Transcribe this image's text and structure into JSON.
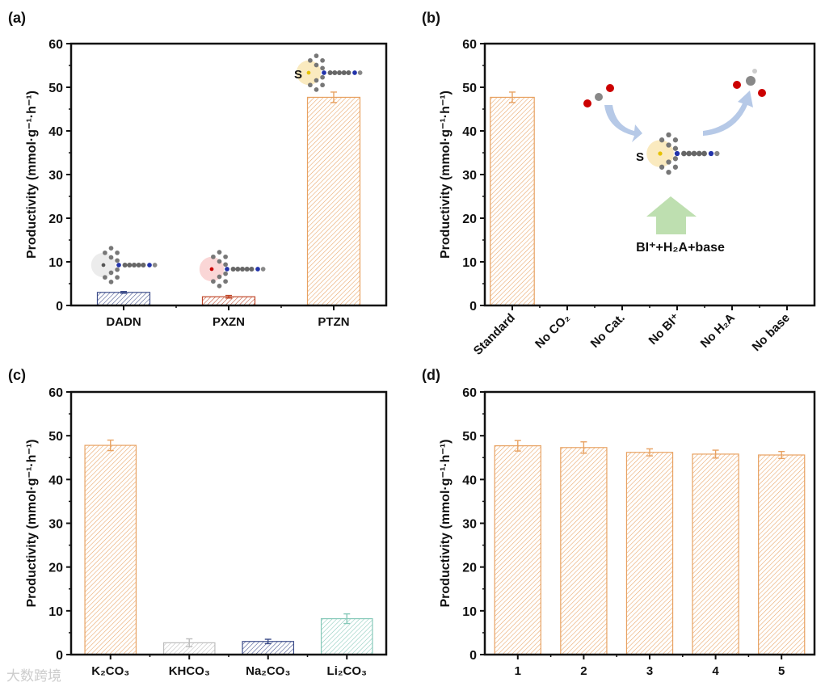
{
  "watermark": "大数跨境",
  "chart_data": [
    {
      "panel_label": "(a)",
      "type": "bar",
      "ylabel": "Productivity (mmol·g⁻¹·h⁻¹)",
      "ylim": [
        0,
        60
      ],
      "yticks": [
        "0",
        "10",
        "20",
        "30",
        "40",
        "50",
        "60"
      ],
      "categories": [
        "DADN",
        "PXZN",
        "PTZN"
      ],
      "values": [
        3.0,
        2.0,
        47.7
      ],
      "errors": [
        0.2,
        0.3,
        1.2
      ],
      "colors": [
        "#3d4d8a",
        "#c0482a",
        "#e8a262"
      ],
      "annotation_labels": [
        "S"
      ]
    },
    {
      "panel_label": "(b)",
      "type": "bar",
      "ylabel": "Productivity (mmol·g⁻¹·h⁻¹)",
      "ylim": [
        0,
        60
      ],
      "yticks": [
        "0",
        "10",
        "20",
        "30",
        "40",
        "50",
        "60"
      ],
      "categories": [
        "Standard",
        "No CO₂",
        "No Cat.",
        "No BI⁺",
        "No H₂A",
        "No base"
      ],
      "values": [
        47.7,
        0,
        0,
        0,
        0,
        0
      ],
      "errors": [
        1.2,
        0,
        0,
        0,
        0,
        0
      ],
      "colors": [
        "#e8a262",
        "#e8a262",
        "#e8a262",
        "#e8a262",
        "#e8a262",
        "#e8a262"
      ],
      "annotation_labels": [
        "S",
        "BI⁺+H₂A+base"
      ]
    },
    {
      "panel_label": "(c)",
      "type": "bar",
      "ylabel": "Productivity (mmol·g⁻¹·h⁻¹)",
      "ylim": [
        0,
        60
      ],
      "yticks": [
        "0",
        "10",
        "20",
        "30",
        "40",
        "50",
        "60"
      ],
      "categories": [
        "K₂CO₃",
        "KHCO₃",
        "Na₂CO₃",
        "Li₂CO₃"
      ],
      "values": [
        47.8,
        2.7,
        3.0,
        8.2
      ],
      "errors": [
        1.2,
        0.9,
        0.5,
        1.1
      ],
      "colors": [
        "#e8a262",
        "#bdbdbd",
        "#3d4d8a",
        "#86c9b9"
      ],
      "annotation_labels": []
    },
    {
      "panel_label": "(d)",
      "type": "bar",
      "ylabel": "Productivity (mmol·g⁻¹·h⁻¹)",
      "ylim": [
        0,
        60
      ],
      "yticks": [
        "0",
        "10",
        "20",
        "30",
        "40",
        "50",
        "60"
      ],
      "categories": [
        "1",
        "2",
        "3",
        "4",
        "5"
      ],
      "values": [
        47.7,
        47.3,
        46.2,
        45.8,
        45.6
      ],
      "errors": [
        1.2,
        1.3,
        0.8,
        0.9,
        0.8
      ],
      "colors": [
        "#e8a262",
        "#e8a262",
        "#e8a262",
        "#e8a262",
        "#e8a262"
      ],
      "annotation_labels": []
    }
  ]
}
